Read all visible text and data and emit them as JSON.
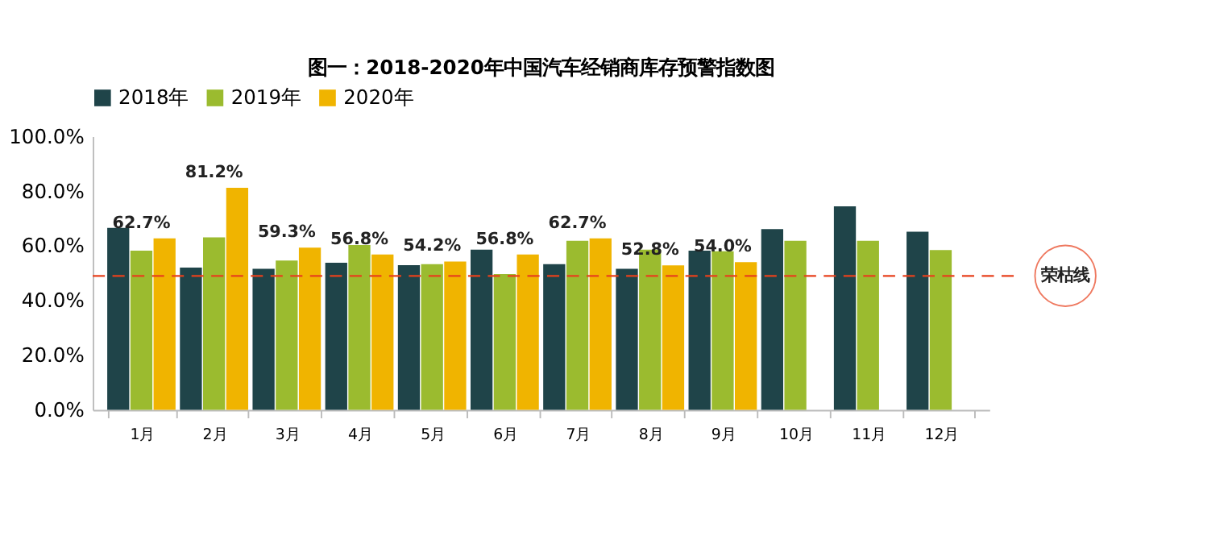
{
  "chart_data": {
    "type": "bar",
    "title": "图一：2018-2020年中国汽车经销商库存预警指数图",
    "categories": [
      "1月",
      "2月",
      "3月",
      "4月",
      "5月",
      "6月",
      "7月",
      "8月",
      "9月",
      "10月",
      "11月",
      "12月"
    ],
    "series": [
      {
        "name": "2018年",
        "color": "#1f4449",
        "values": [
          66.5,
          52.0,
          51.6,
          53.8,
          52.9,
          58.6,
          53.3,
          51.6,
          58.2,
          66.1,
          74.4,
          65.1
        ]
      },
      {
        "name": "2019年",
        "color": "#9bbb2f",
        "values": [
          58.2,
          63.1,
          54.6,
          60.3,
          53.3,
          49.7,
          61.8,
          58.6,
          58.0,
          61.8,
          61.8,
          58.4
        ]
      },
      {
        "name": "2020年",
        "color": "#f0b400",
        "values": [
          62.7,
          81.2,
          59.3,
          56.8,
          54.2,
          56.8,
          62.7,
          52.8,
          54.0,
          null,
          null,
          null
        ],
        "value_labels": [
          "62.7%",
          "81.2%",
          "59.3%",
          "56.8%",
          "54.2%",
          "56.8%",
          "62.7%",
          "52.8%",
          "54.0%",
          null,
          null,
          null
        ]
      }
    ],
    "ylim": [
      0,
      100
    ],
    "yticks": [
      {
        "value": 0,
        "label": "0.0%"
      },
      {
        "value": 20,
        "label": "20.0%"
      },
      {
        "value": 40,
        "label": "40.0%"
      },
      {
        "value": 60,
        "label": "60.0%"
      },
      {
        "value": 80,
        "label": "80.0%"
      },
      {
        "value": 100,
        "label": "100.0%"
      }
    ],
    "ref_lines": [
      {
        "axis": "y",
        "value": 49,
        "label": "荣枯线",
        "color": "#e8401c",
        "line_style": "dashed"
      }
    ],
    "legend": "top",
    "grid": false
  }
}
